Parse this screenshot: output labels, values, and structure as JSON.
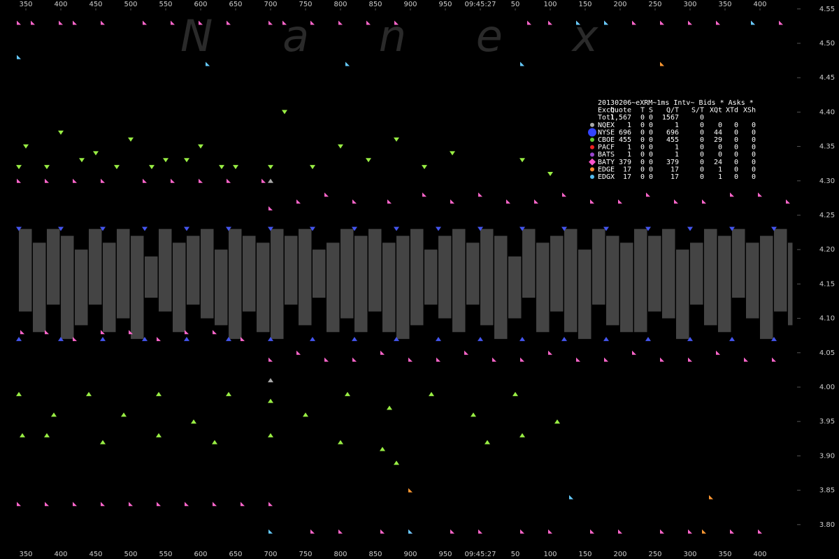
{
  "chart_data": {
    "type": "scatter",
    "watermark": "N a n e x",
    "xlim": [
      331,
      1448
    ],
    "ylim": [
      3.75,
      4.563
    ],
    "xticks": [
      350,
      400,
      450,
      500,
      550,
      600,
      650,
      700,
      750,
      800,
      850,
      900,
      950,
      {
        "value": 1000,
        "label": "09:45:27"
      },
      {
        "value": 1050,
        "label": "50"
      },
      {
        "value": 1100,
        "label": "100"
      },
      {
        "value": 1150,
        "label": "150"
      },
      {
        "value": 1200,
        "label": "200"
      },
      {
        "value": 1250,
        "label": "250"
      },
      {
        "value": 1300,
        "label": "300"
      },
      {
        "value": 1350,
        "label": "350"
      },
      {
        "value": 1400,
        "label": "400"
      }
    ],
    "yticks": [
      4.55,
      {
        "value": 4.5,
        "label": "4.50"
      },
      4.45,
      {
        "value": 4.4,
        "label": "4.40"
      },
      4.35,
      {
        "value": 4.3,
        "label": "4.30"
      },
      4.25,
      {
        "value": 4.2,
        "label": "4.20"
      },
      4.15,
      {
        "value": 4.1,
        "label": "4.10"
      },
      4.05,
      {
        "value": 4,
        "label": "4.00"
      },
      3.95,
      {
        "value": 3.9,
        "label": "3.90"
      },
      3.85,
      {
        "value": 3.8,
        "label": "3.80"
      }
    ],
    "spread": {
      "color": "#444444",
      "x": [
        340,
        360,
        380,
        400,
        420,
        440,
        460,
        480,
        500,
        520,
        540,
        560,
        580,
        600,
        620,
        640,
        660,
        680,
        700,
        720,
        740,
        760,
        780,
        800,
        820,
        840,
        860,
        880,
        900,
        920,
        940,
        960,
        980,
        1000,
        1020,
        1040,
        1060,
        1080,
        1100,
        1120,
        1140,
        1160,
        1180,
        1200,
        1220,
        1240,
        1260,
        1280,
        1300,
        1320,
        1340,
        1360,
        1380,
        1400,
        1420,
        1440
      ],
      "bid": [
        4.11,
        4.08,
        4.12,
        4.07,
        4.09,
        4.12,
        4.08,
        4.1,
        4.07,
        4.13,
        4.11,
        4.08,
        4.12,
        4.1,
        4.09,
        4.07,
        4.11,
        4.08,
        4.07,
        4.12,
        4.09,
        4.13,
        4.08,
        4.1,
        4.08,
        4.11,
        4.08,
        4.07,
        4.09,
        4.12,
        4.1,
        4.08,
        4.12,
        4.09,
        4.07,
        4.1,
        4.13,
        4.08,
        4.11,
        4.08,
        4.07,
        4.12,
        4.09,
        4.08,
        4.08,
        4.11,
        4.1,
        4.07,
        4.12,
        4.09,
        4.08,
        4.13,
        4.1,
        4.07,
        4.11,
        4.09
      ],
      "ask": [
        4.23,
        4.21,
        4.23,
        4.22,
        4.2,
        4.23,
        4.21,
        4.23,
        4.22,
        4.19,
        4.23,
        4.21,
        4.22,
        4.23,
        4.2,
        4.23,
        4.22,
        4.21,
        4.23,
        4.22,
        4.23,
        4.2,
        4.21,
        4.23,
        4.22,
        4.23,
        4.21,
        4.22,
        4.23,
        4.2,
        4.22,
        4.23,
        4.21,
        4.23,
        4.22,
        4.19,
        4.23,
        4.21,
        4.22,
        4.23,
        4.2,
        4.23,
        4.22,
        4.21,
        4.23,
        4.22,
        4.23,
        4.2,
        4.21,
        4.23,
        4.22,
        4.23,
        4.21,
        4.22,
        4.23,
        4.21
      ]
    },
    "series": [
      {
        "color": "#99ee44",
        "marker": "down",
        "x": [
          350,
          400,
          450,
          500,
          550,
          600,
          650,
          720,
          800,
          880,
          960,
          1060
        ],
        "values": [
          4.35,
          4.37,
          4.34,
          4.36,
          4.33,
          4.35,
          4.32,
          4.4,
          4.35,
          4.36,
          4.34,
          4.33
        ]
      },
      {
        "color": "#99ee44",
        "marker": "down",
        "x": [
          340,
          380,
          430,
          480,
          530,
          580,
          630,
          700,
          760,
          840,
          920,
          1100
        ],
        "values": [
          4.32,
          4.32,
          4.33,
          4.32,
          4.32,
          4.33,
          4.32,
          4.32,
          4.32,
          4.33,
          4.32,
          4.31
        ]
      },
      {
        "color": "#99ee44",
        "marker": "up",
        "x": [
          340,
          390,
          440,
          490,
          540,
          590,
          640,
          700,
          750,
          810,
          870,
          930,
          990,
          1050,
          1110
        ],
        "values": [
          3.99,
          3.96,
          3.99,
          3.96,
          3.99,
          3.95,
          3.99,
          3.98,
          3.96,
          3.99,
          3.97,
          3.99,
          3.96,
          3.99,
          3.95
        ]
      },
      {
        "color": "#99ee44",
        "marker": "up",
        "x": [
          345,
          380,
          460,
          540,
          620,
          700,
          800,
          860,
          880,
          1010,
          1060
        ],
        "values": [
          3.93,
          3.93,
          3.92,
          3.93,
          3.92,
          3.93,
          3.92,
          3.91,
          3.89,
          3.92,
          3.93
        ]
      },
      {
        "color": "#ff66cc",
        "marker": "flag",
        "x": [
          340,
          360,
          400,
          420,
          460,
          520,
          560,
          600,
          640,
          700,
          720,
          760,
          800,
          840,
          880,
          1070,
          1100,
          1140,
          1180,
          1220,
          1260,
          1300,
          1340,
          1390,
          1430
        ],
        "values": [
          4.53,
          4.53,
          4.53,
          4.53,
          4.53,
          4.53,
          4.53,
          4.53,
          4.53,
          4.53,
          4.53,
          4.53,
          4.53,
          4.53,
          4.53,
          4.53,
          4.53,
          4.53,
          4.53,
          4.53,
          4.53,
          4.53,
          4.53,
          4.53,
          4.53
        ]
      },
      {
        "color": "#ff66cc",
        "marker": "flag",
        "x": [
          340,
          380,
          420,
          460,
          520,
          560,
          600,
          640,
          690,
          700,
          740,
          780,
          820,
          870,
          920,
          960,
          1000,
          1040,
          1080,
          1120,
          1160,
          1200,
          1240,
          1280,
          1320,
          1360,
          1400,
          1440
        ],
        "values": [
          4.3,
          4.3,
          4.3,
          4.3,
          4.3,
          4.3,
          4.3,
          4.3,
          4.3,
          4.26,
          4.27,
          4.28,
          4.27,
          4.27,
          4.28,
          4.27,
          4.28,
          4.27,
          4.27,
          4.28,
          4.27,
          4.27,
          4.28,
          4.27,
          4.27,
          4.28,
          4.28,
          4.27
        ]
      },
      {
        "color": "#ff66cc",
        "marker": "flag",
        "x": [
          345,
          380,
          420,
          460,
          500,
          540,
          580,
          620,
          660,
          700,
          740,
          780,
          820,
          860,
          900,
          940,
          980,
          1020,
          1060,
          1100,
          1140,
          1180,
          1220,
          1260,
          1300,
          1340,
          1380,
          1420
        ],
        "values": [
          4.08,
          4.08,
          4.07,
          4.08,
          4.08,
          4.07,
          4.08,
          4.08,
          4.07,
          4.04,
          4.05,
          4.04,
          4.04,
          4.05,
          4.04,
          4.04,
          4.05,
          4.04,
          4.04,
          4.05,
          4.04,
          4.04,
          4.05,
          4.04,
          4.04,
          4.05,
          4.04,
          4.04
        ]
      },
      {
        "color": "#ff66cc",
        "marker": "flag",
        "x": [
          340,
          380,
          420,
          460,
          500,
          540,
          580,
          620,
          660,
          700,
          760,
          800,
          860,
          900,
          960,
          1000,
          1060,
          1100,
          1160,
          1200,
          1260,
          1300,
          1360,
          1400
        ],
        "values": [
          3.83,
          3.83,
          3.83,
          3.83,
          3.83,
          3.83,
          3.83,
          3.83,
          3.83,
          3.83,
          3.79,
          3.79,
          3.79,
          3.79,
          3.79,
          3.79,
          3.79,
          3.79,
          3.79,
          3.79,
          3.79,
          3.79,
          3.79,
          3.79
        ]
      },
      {
        "color": "#66ccff",
        "marker": "flag",
        "x": [
          340,
          610,
          810,
          1060,
          1140,
          1180,
          1390,
          700,
          900,
          1130
        ],
        "values": [
          4.48,
          4.47,
          4.47,
          4.47,
          4.53,
          4.53,
          4.53,
          3.79,
          3.79,
          3.84
        ]
      },
      {
        "color": "#ff9933",
        "marker": "flag",
        "x": [
          1260,
          900,
          1330,
          1320
        ],
        "values": [
          4.47,
          3.85,
          3.84,
          3.79
        ]
      },
      {
        "color": "#4455ee",
        "marker": "up",
        "x": [
          340,
          400,
          460,
          520,
          580,
          640,
          700,
          760,
          820,
          880,
          940,
          1000,
          1060,
          1120,
          1180,
          1240,
          1300,
          1360,
          1420
        ],
        "values": [
          4.07,
          4.07,
          4.07,
          4.07,
          4.07,
          4.07,
          4.07,
          4.07,
          4.07,
          4.07,
          4.07,
          4.07,
          4.07,
          4.07,
          4.07,
          4.07,
          4.07,
          4.07,
          4.07
        ]
      },
      {
        "color": "#4455ee",
        "marker": "down",
        "x": [
          340,
          400,
          460,
          520,
          580,
          640,
          700,
          760,
          820,
          880,
          940,
          1000,
          1060,
          1120,
          1180,
          1240,
          1300,
          1360,
          1420
        ],
        "values": [
          4.23,
          4.23,
          4.23,
          4.23,
          4.23,
          4.23,
          4.23,
          4.23,
          4.23,
          4.23,
          4.23,
          4.23,
          4.23,
          4.23,
          4.23,
          4.23,
          4.23,
          4.23,
          4.23
        ]
      },
      {
        "color": "#aaaaaa",
        "marker": "up",
        "x": [
          700,
          700
        ],
        "values": [
          4.01,
          4.3
        ]
      }
    ],
    "table": {
      "title": "20130206~eXRM~1ms Intv~ Bids * Asks *",
      "header": [
        "Exch",
        "Quote",
        "T",
        "S",
        "Q/T",
        "S/T",
        "XQt",
        "XTd",
        "XSh"
      ],
      "total": [
        "Totl",
        "1,567",
        0,
        0,
        1567,
        0
      ],
      "rows": [
        {
          "color": "#aaaaaa",
          "cells": [
            "NQEX",
            1,
            0,
            0,
            1,
            0,
            0,
            0,
            0
          ]
        },
        {
          "color": "#3344ff",
          "cells": [
            "NYSE",
            696,
            0,
            0,
            696,
            0,
            44,
            0,
            0
          ]
        },
        {
          "color": "#66cc33",
          "cells": [
            "CBOE",
            455,
            0,
            0,
            455,
            0,
            29,
            0,
            0
          ]
        },
        {
          "color": "#ee2222",
          "cells": [
            "PACF",
            1,
            0,
            0,
            1,
            0,
            0,
            0,
            0
          ]
        },
        {
          "color": "#9944cc",
          "cells": [
            "BATS",
            1,
            0,
            0,
            1,
            0,
            0,
            0,
            0
          ]
        },
        {
          "color": "#ff55cc",
          "cells": [
            "BATY",
            379,
            0,
            0,
            379,
            0,
            24,
            0,
            0
          ]
        },
        {
          "color": "#ff8833",
          "cells": [
            "EDGE",
            17,
            0,
            0,
            17,
            0,
            1,
            0,
            0
          ]
        },
        {
          "color": "#55bbee",
          "cells": [
            "EDGX",
            17,
            0,
            0,
            17,
            0,
            1,
            0,
            0
          ]
        }
      ]
    }
  }
}
